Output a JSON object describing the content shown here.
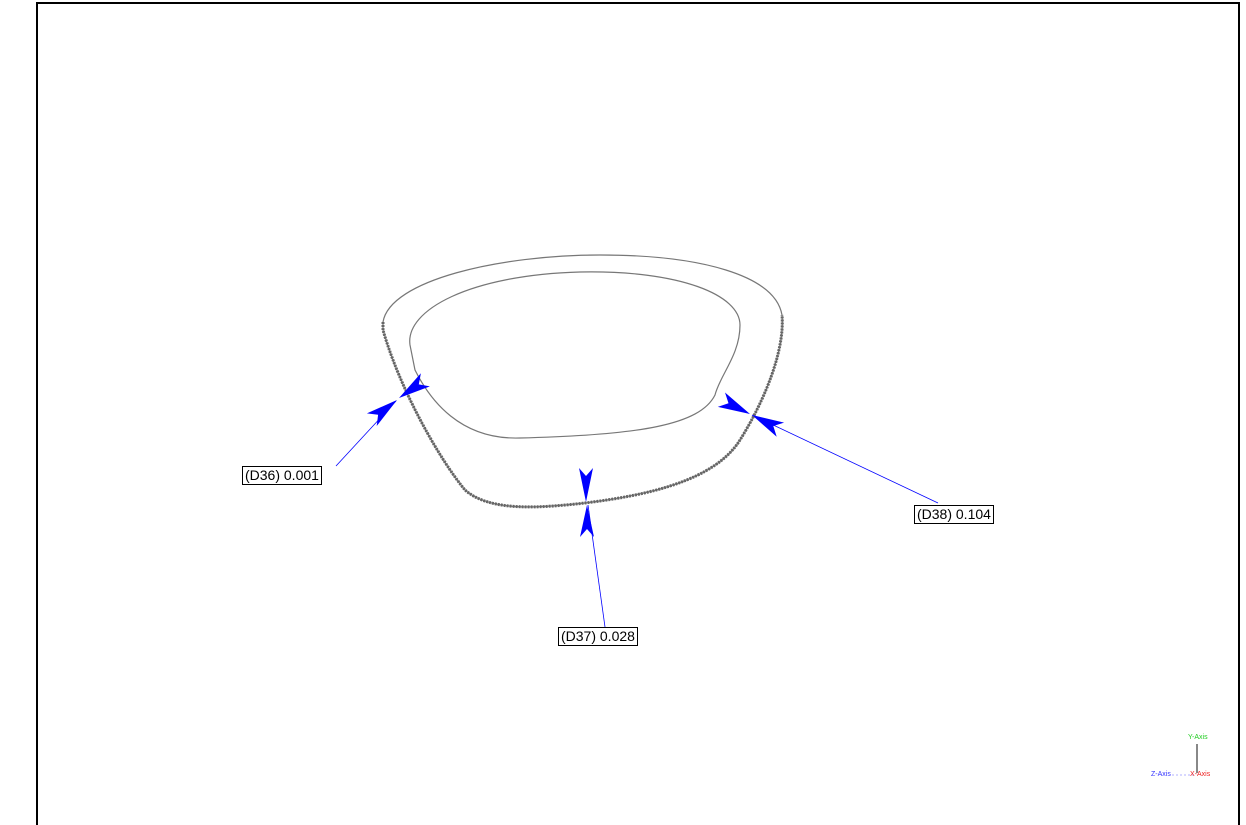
{
  "dimensions": [
    {
      "label": "(D36) 0.001"
    },
    {
      "label": "(D37) 0.028"
    },
    {
      "label": "(D38) 0.104"
    }
  ],
  "axis_triad": {
    "y": "Y-Axis",
    "z": "Z-Axis",
    "x": "X-Axis"
  }
}
